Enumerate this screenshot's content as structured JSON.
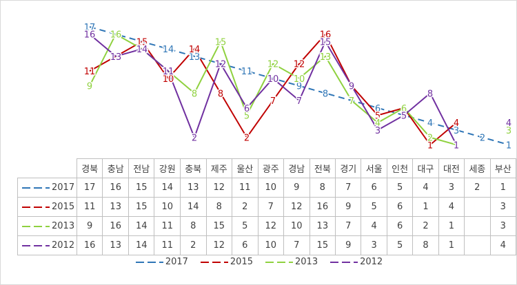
{
  "chart_data": {
    "type": "line",
    "title": "",
    "xlabel": "",
    "ylabel": "",
    "ylim": [
      0,
      17
    ],
    "grid": false,
    "legend": "bottom",
    "categories": [
      "경북",
      "충남",
      "전남",
      "강원",
      "충북",
      "제주",
      "울산",
      "광주",
      "경남",
      "전북",
      "경기",
      "서울",
      "인천",
      "대구",
      "대전",
      "세종",
      "부산"
    ],
    "series": [
      {
        "name": "2017",
        "color": "#2e75b6",
        "dash": "dashed",
        "values": [
          17,
          16,
          15,
          14,
          13,
          12,
          11,
          10,
          9,
          8,
          7,
          6,
          5,
          4,
          3,
          2,
          1
        ]
      },
      {
        "name": "2015",
        "color": "#c00000",
        "dash": "solid",
        "values": [
          11,
          13,
          15,
          10,
          14,
          8,
          2,
          7,
          12,
          16,
          9,
          5,
          6,
          1,
          4,
          null,
          3
        ]
      },
      {
        "name": "2013",
        "color": "#8fd13f",
        "dash": "solid",
        "values": [
          9,
          16,
          14,
          11,
          8,
          15,
          5,
          12,
          10,
          13,
          7,
          4,
          6,
          2,
          1,
          null,
          3
        ]
      },
      {
        "name": "2012",
        "color": "#7030a0",
        "dash": "solid",
        "values": [
          16,
          13,
          14,
          11,
          2,
          12,
          6,
          10,
          7,
          15,
          9,
          3,
          5,
          8,
          1,
          null,
          4
        ]
      }
    ]
  }
}
